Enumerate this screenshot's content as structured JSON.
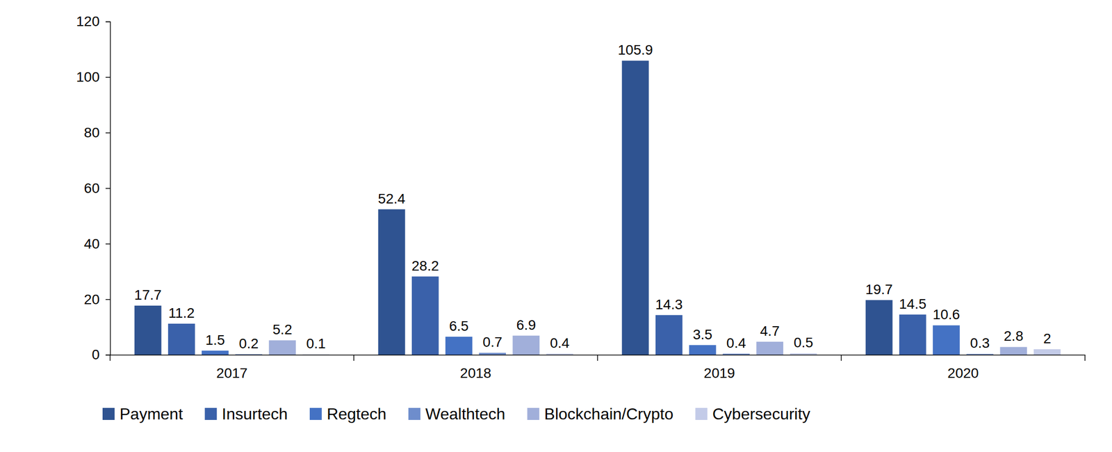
{
  "chart_data": {
    "type": "bar",
    "categories": [
      "2017",
      "2018",
      "2019",
      "2020"
    ],
    "series": [
      {
        "name": "Payment",
        "color": "#2f5391",
        "values": [
          17.7,
          52.4,
          105.9,
          19.7
        ]
      },
      {
        "name": "Insurtech",
        "color": "#3a61aa",
        "values": [
          11.2,
          28.2,
          14.3,
          14.5
        ]
      },
      {
        "name": "Regtech",
        "color": "#4472c4",
        "values": [
          1.5,
          6.5,
          3.5,
          10.6
        ]
      },
      {
        "name": "Wealthtech",
        "color": "#6e8dcc",
        "values": [
          0.2,
          0.7,
          0.4,
          0.3
        ]
      },
      {
        "name": "Blockchain/Crypto",
        "color": "#a1afda",
        "values": [
          5.2,
          6.9,
          4.7,
          2.8
        ]
      },
      {
        "name": "Cybersecurity",
        "color": "#c3cbe8",
        "values": [
          0.1,
          0.4,
          0.5,
          2
        ]
      }
    ],
    "ylim": [
      0,
      120
    ],
    "yticks": [
      0,
      20,
      40,
      60,
      80,
      100,
      120
    ],
    "grid": false,
    "legend": "bottom",
    "data_labels": true
  }
}
